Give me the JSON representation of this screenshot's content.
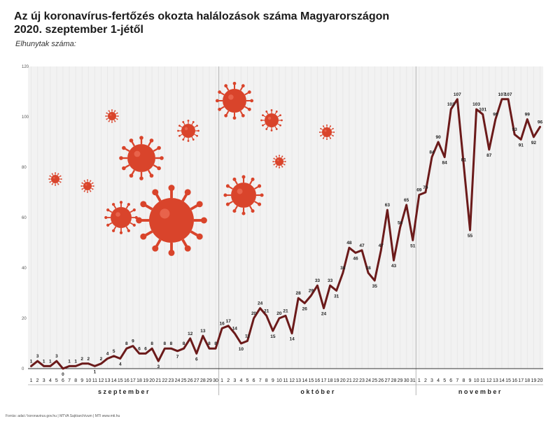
{
  "header": {
    "title_line1": "Az új koronavírus-fertőzés okozta halálozások száma Magyarországon",
    "title_line2": "2020. szeptember 1-jétől",
    "subtitle": "Elhunytak száma:"
  },
  "footer": {
    "source": "Forrás: adat / koronavirus.gov.hu | MTVA Sajtóarchívum | MTI",
    "site": "www.mti.hu"
  },
  "colors": {
    "line": "#6b1a1a",
    "virus": "#d9442b",
    "grid": "#e8e8e8",
    "band": "#f2f2f2"
  },
  "chart_data": {
    "type": "line",
    "title": "Az új koronavírus-fertőzés okozta halálozások száma Magyarországon 2020. szeptember 1-jétől",
    "ylabel": "Elhunytak száma:",
    "ylim": [
      0,
      120
    ],
    "yticks": [
      0,
      20,
      40,
      60,
      80,
      100,
      120
    ],
    "grid": true,
    "months": [
      {
        "name": "s z e p t e m b e r",
        "days": [
          1,
          2,
          3,
          4,
          5,
          6,
          7,
          8,
          9,
          10,
          11,
          12,
          13,
          14,
          15,
          16,
          17,
          18,
          19,
          20,
          21,
          22,
          23,
          24,
          25,
          26,
          27,
          28,
          29,
          30
        ]
      },
      {
        "name": "o k t ó b e r",
        "days": [
          1,
          2,
          3,
          4,
          5,
          6,
          7,
          8,
          9,
          10,
          11,
          12,
          13,
          14,
          15,
          16,
          17,
          18,
          19,
          20,
          21,
          22,
          23,
          24,
          25,
          26,
          27,
          28,
          29,
          30,
          31
        ]
      },
      {
        "name": "n o v e m b e r",
        "days": [
          1,
          2,
          3,
          4,
          5,
          6,
          7,
          8,
          9,
          10,
          11,
          12,
          13,
          14,
          15,
          16,
          17,
          18,
          19,
          20
        ]
      }
    ],
    "values": [
      1,
      3,
      1,
      1,
      3,
      0,
      1,
      1,
      2,
      2,
      1,
      2,
      4,
      5,
      4,
      8,
      9,
      6,
      6,
      8,
      3,
      8,
      8,
      7,
      8,
      12,
      6,
      13,
      8,
      8,
      16,
      17,
      14,
      10,
      11,
      20,
      24,
      21,
      15,
      20,
      21,
      14,
      28,
      26,
      29,
      33,
      24,
      33,
      31,
      38,
      48,
      46,
      47,
      38,
      35,
      47,
      63,
      43,
      56,
      65,
      51,
      69,
      70,
      84,
      90,
      84,
      103,
      107,
      81,
      55,
      103,
      101,
      87,
      99,
      107,
      107,
      93,
      91,
      99,
      92,
      96
    ]
  }
}
